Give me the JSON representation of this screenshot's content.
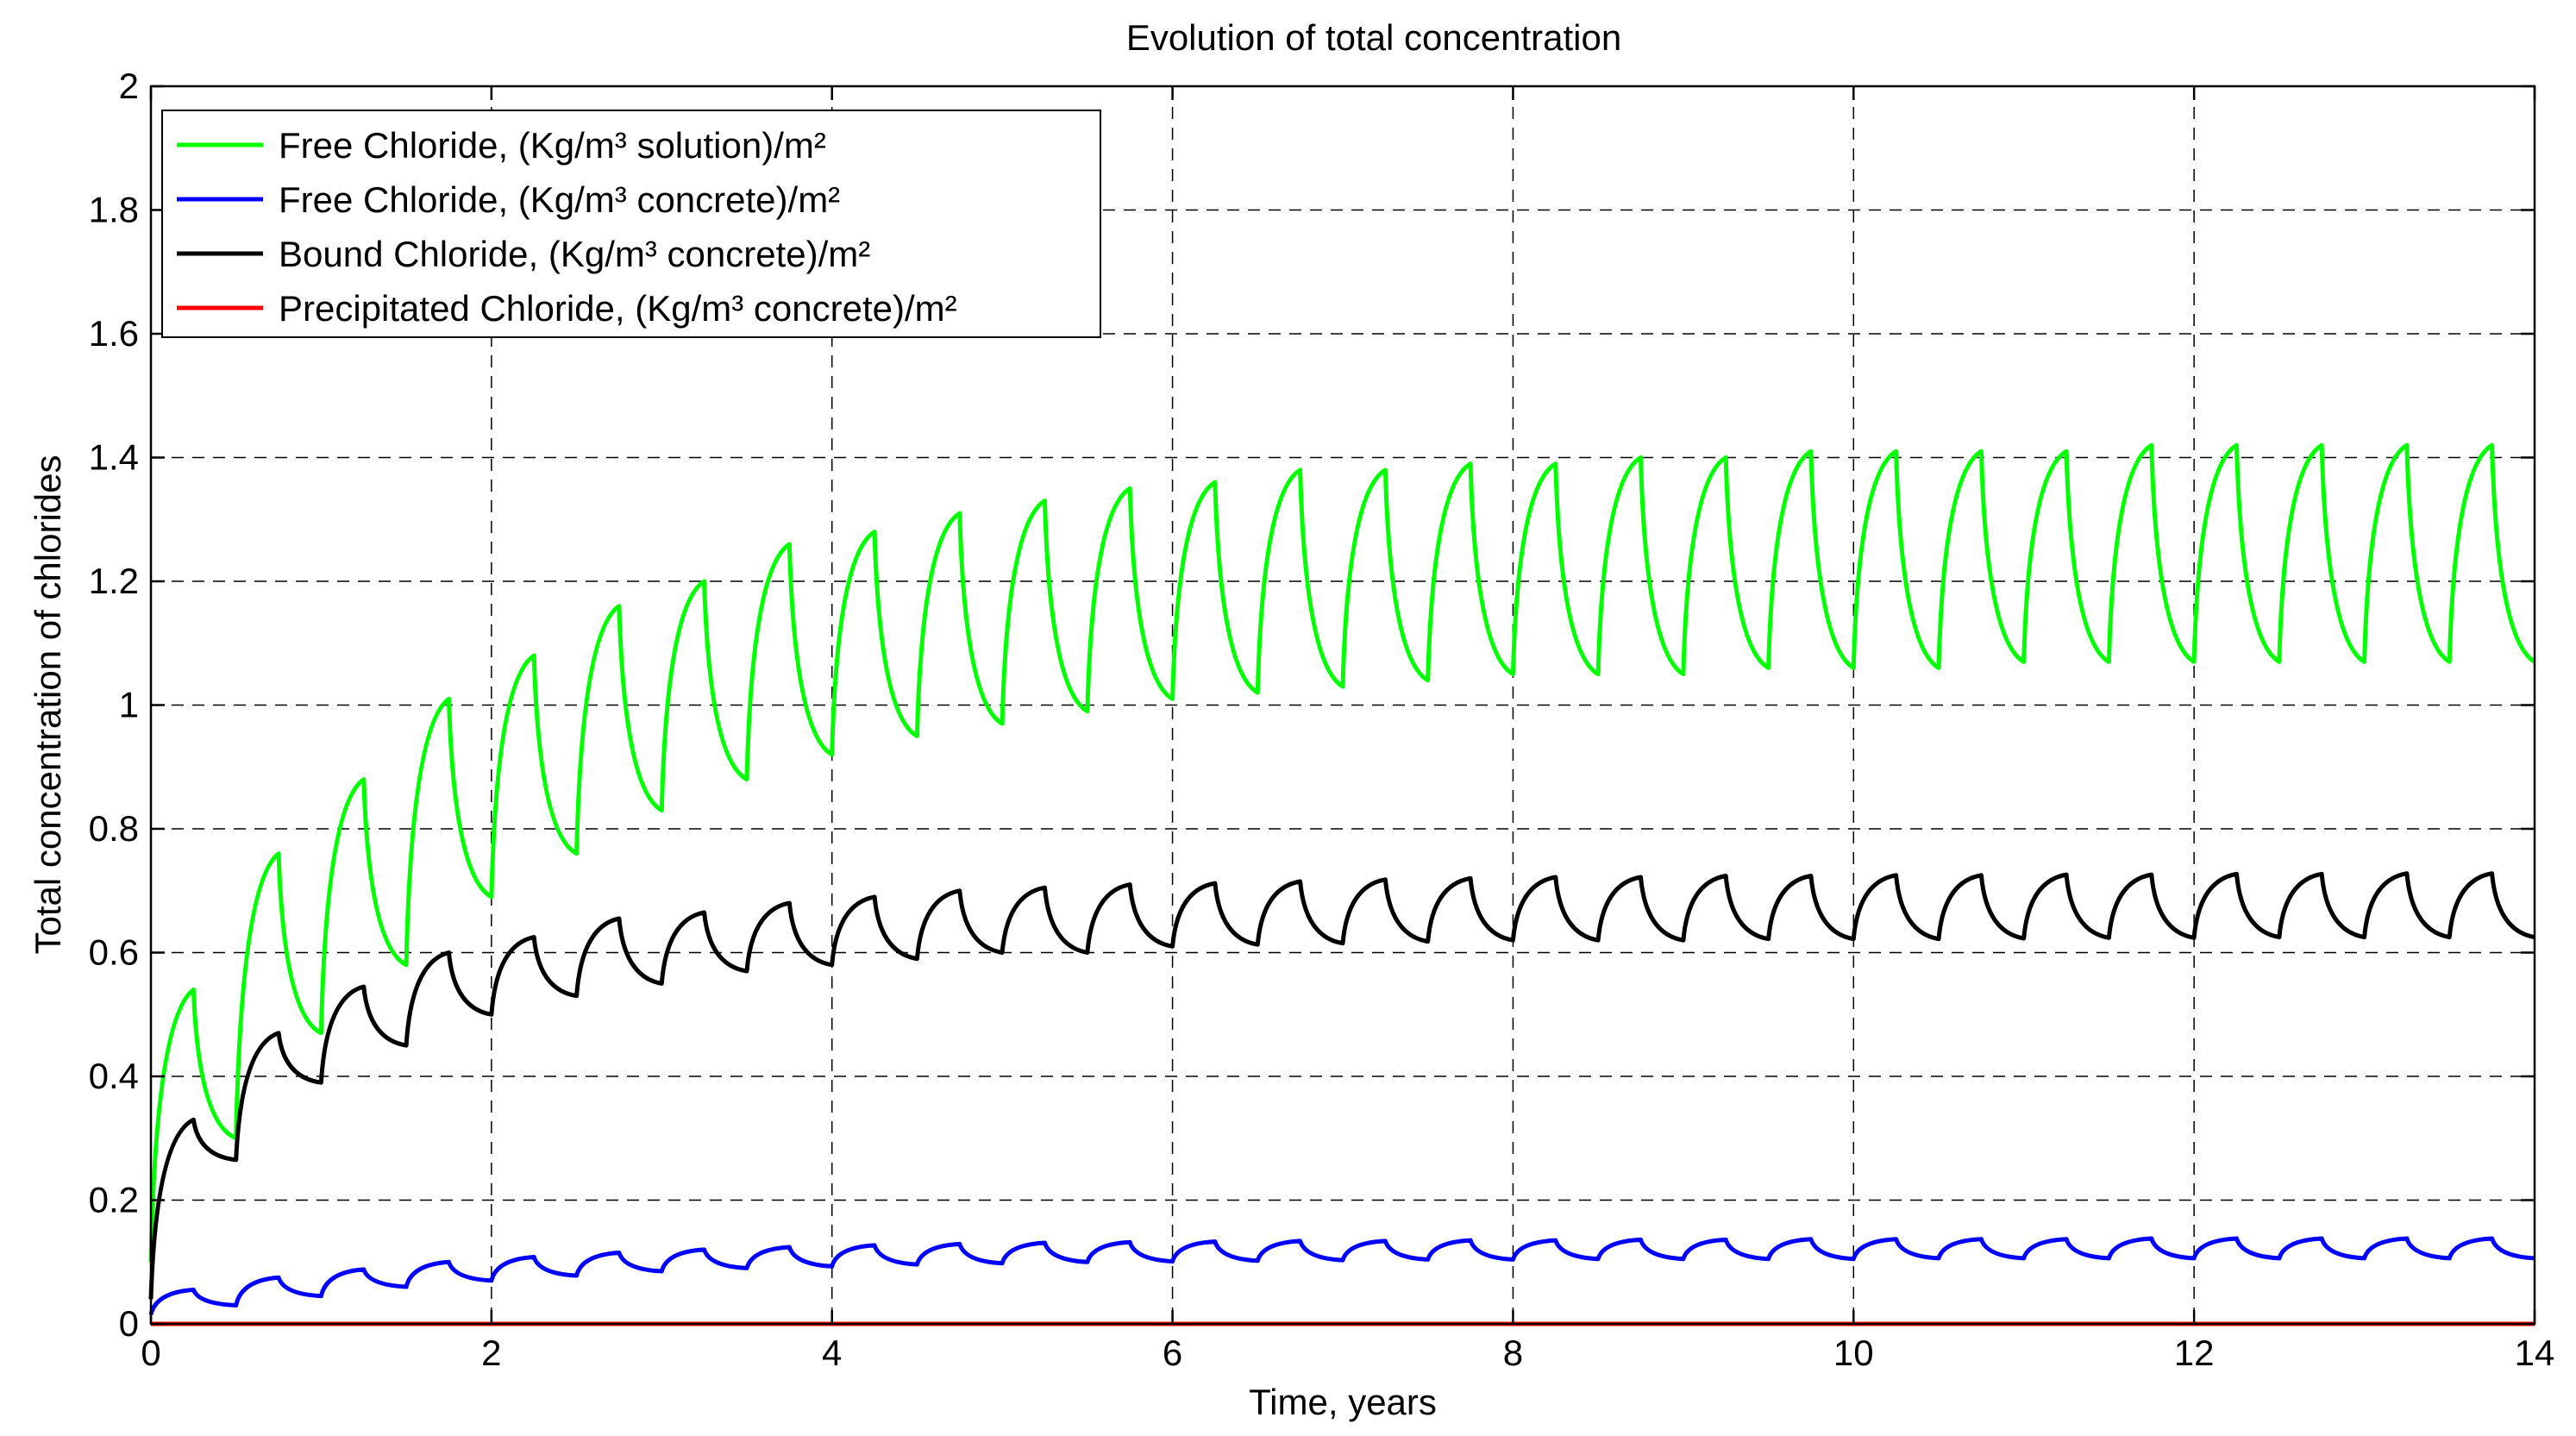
{
  "chart_data": {
    "type": "line",
    "title": "Evolution of total concentration",
    "xlabel": "Time, years",
    "ylabel": "Total concentration of chlorides",
    "xlim": [
      0,
      14
    ],
    "ylim": [
      0,
      2
    ],
    "grid": true,
    "legend_position": "top-left",
    "x_ticks": [
      "0",
      "2",
      "4",
      "6",
      "8",
      "10",
      "12",
      "14"
    ],
    "y_ticks": [
      "0",
      "0.2",
      "0.4",
      "0.6",
      "0.8",
      "1",
      "1.2",
      "1.4",
      "1.6",
      "1.8",
      "2"
    ],
    "series_x": [
      0,
      0.25,
      0.5,
      0.75,
      1,
      1.25,
      1.5,
      1.75,
      2,
      2.25,
      2.5,
      2.75,
      3,
      3.25,
      3.5,
      3.75,
      4,
      4.25,
      4.5,
      4.75,
      5,
      5.25,
      5.5,
      5.75,
      6,
      6.25,
      6.5,
      6.75,
      7,
      7.25,
      7.5,
      7.75,
      8,
      8.25,
      8.5,
      8.75,
      9,
      9.25,
      9.5,
      9.75,
      10,
      10.25,
      10.5,
      10.75,
      11,
      11.25,
      11.5,
      11.75,
      12,
      12.25,
      12.5,
      12.75,
      13,
      13.25,
      13.5,
      13.75,
      14
    ],
    "series": [
      {
        "name": "Free Chloride, (Kg/m³ solution)/m²",
        "color": "#00ff00",
        "values": [
          0.1,
          0.54,
          0.3,
          0.76,
          0.47,
          0.88,
          0.58,
          1.01,
          0.69,
          1.08,
          0.76,
          1.16,
          0.83,
          1.2,
          0.88,
          1.26,
          0.92,
          1.28,
          0.95,
          1.31,
          0.97,
          1.33,
          0.99,
          1.35,
          1.01,
          1.36,
          1.02,
          1.38,
          1.03,
          1.38,
          1.04,
          1.39,
          1.05,
          1.39,
          1.05,
          1.4,
          1.05,
          1.4,
          1.06,
          1.41,
          1.06,
          1.41,
          1.06,
          1.41,
          1.07,
          1.41,
          1.07,
          1.42,
          1.07,
          1.42,
          1.07,
          1.42,
          1.07,
          1.42,
          1.07,
          1.42,
          1.07
        ]
      },
      {
        "name": "Free Chloride, (Kg/m³ concrete)/m²",
        "color": "#0000ff",
        "values": [
          0.015,
          0.055,
          0.03,
          0.075,
          0.045,
          0.088,
          0.06,
          0.1,
          0.07,
          0.108,
          0.078,
          0.115,
          0.085,
          0.12,
          0.09,
          0.124,
          0.093,
          0.127,
          0.096,
          0.129,
          0.098,
          0.131,
          0.1,
          0.132,
          0.101,
          0.133,
          0.102,
          0.134,
          0.103,
          0.134,
          0.104,
          0.135,
          0.104,
          0.135,
          0.105,
          0.136,
          0.105,
          0.136,
          0.105,
          0.137,
          0.105,
          0.137,
          0.106,
          0.137,
          0.106,
          0.137,
          0.106,
          0.138,
          0.106,
          0.138,
          0.106,
          0.138,
          0.106,
          0.138,
          0.106,
          0.138,
          0.106
        ]
      },
      {
        "name": "Bound Chloride, (Kg/m³ concrete)/m²",
        "color": "#000000",
        "values": [
          0.04,
          0.33,
          0.265,
          0.47,
          0.39,
          0.545,
          0.45,
          0.6,
          0.5,
          0.625,
          0.53,
          0.655,
          0.55,
          0.665,
          0.57,
          0.68,
          0.58,
          0.69,
          0.59,
          0.7,
          0.6,
          0.705,
          0.6,
          0.71,
          0.61,
          0.712,
          0.613,
          0.715,
          0.615,
          0.718,
          0.618,
          0.72,
          0.62,
          0.722,
          0.62,
          0.722,
          0.62,
          0.724,
          0.622,
          0.724,
          0.622,
          0.725,
          0.622,
          0.725,
          0.623,
          0.726,
          0.624,
          0.726,
          0.624,
          0.727,
          0.625,
          0.727,
          0.625,
          0.728,
          0.625,
          0.728,
          0.625
        ]
      },
      {
        "name": "Precipitated Chloride, (Kg/m³ concrete)/m²",
        "color": "#ff0000",
        "values": [
          0,
          0,
          0,
          0,
          0,
          0,
          0,
          0,
          0,
          0,
          0,
          0,
          0,
          0,
          0,
          0,
          0,
          0,
          0,
          0,
          0,
          0,
          0,
          0,
          0,
          0,
          0,
          0,
          0,
          0,
          0,
          0,
          0,
          0,
          0,
          0,
          0,
          0,
          0,
          0,
          0,
          0,
          0,
          0,
          0,
          0,
          0,
          0,
          0,
          0,
          0,
          0,
          0,
          0,
          0,
          0,
          0
        ]
      }
    ]
  }
}
